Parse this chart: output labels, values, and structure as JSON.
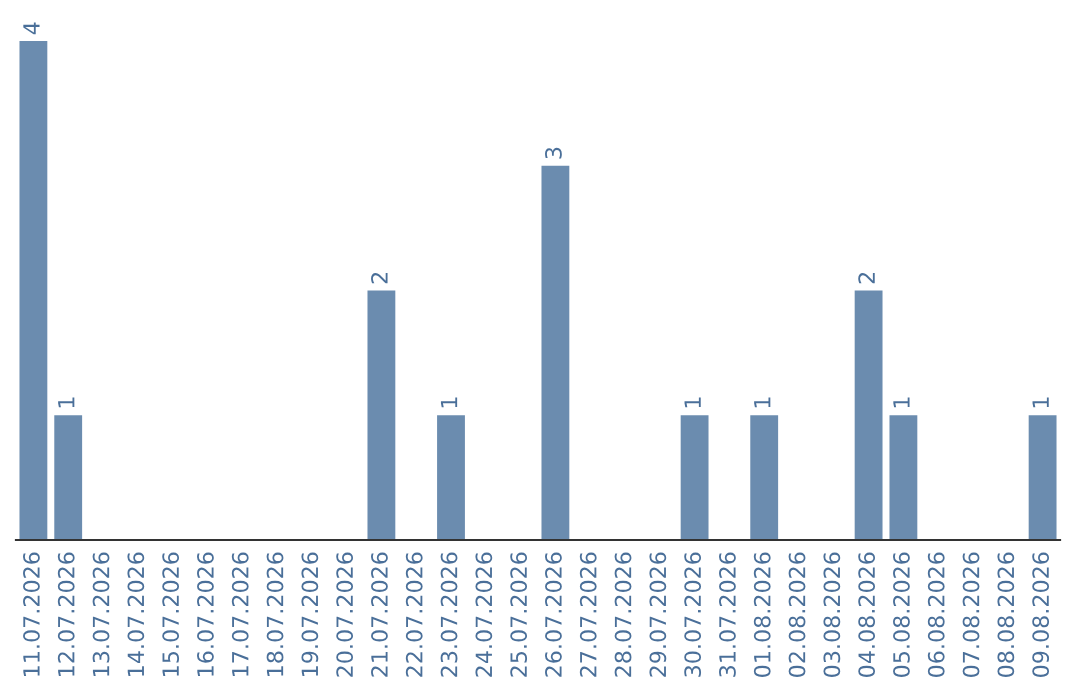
{
  "chart_data": {
    "type": "bar",
    "categories": [
      "11.07.2026",
      "12.07.2026",
      "13.07.2026",
      "14.07.2026",
      "15.07.2026",
      "16.07.2026",
      "17.07.2026",
      "18.07.2026",
      "19.07.2026",
      "20.07.2026",
      "21.07.2026",
      "22.07.2026",
      "23.07.2026",
      "24.07.2026",
      "25.07.2026",
      "26.07.2026",
      "27.07.2026",
      "28.07.2026",
      "29.07.2026",
      "30.07.2026",
      "31.07.2026",
      "01.08.2026",
      "02.08.2026",
      "03.08.2026",
      "04.08.2026",
      "05.08.2026",
      "06.08.2026",
      "07.08.2026",
      "08.08.2026",
      "09.08.2026"
    ],
    "values": [
      4,
      1,
      0,
      0,
      0,
      0,
      0,
      0,
      0,
      0,
      2,
      0,
      1,
      0,
      0,
      3,
      0,
      0,
      0,
      1,
      0,
      1,
      0,
      0,
      2,
      1,
      0,
      0,
      0,
      1
    ],
    "value_labels": [
      "4",
      "1",
      null,
      null,
      null,
      null,
      null,
      null,
      null,
      null,
      "2",
      null,
      "1",
      null,
      null,
      "3",
      null,
      null,
      null,
      "1",
      null,
      "1",
      null,
      null,
      "2",
      "1",
      null,
      null,
      null,
      "1"
    ],
    "color": "#6b8caf",
    "grid": false,
    "legend": false
  }
}
